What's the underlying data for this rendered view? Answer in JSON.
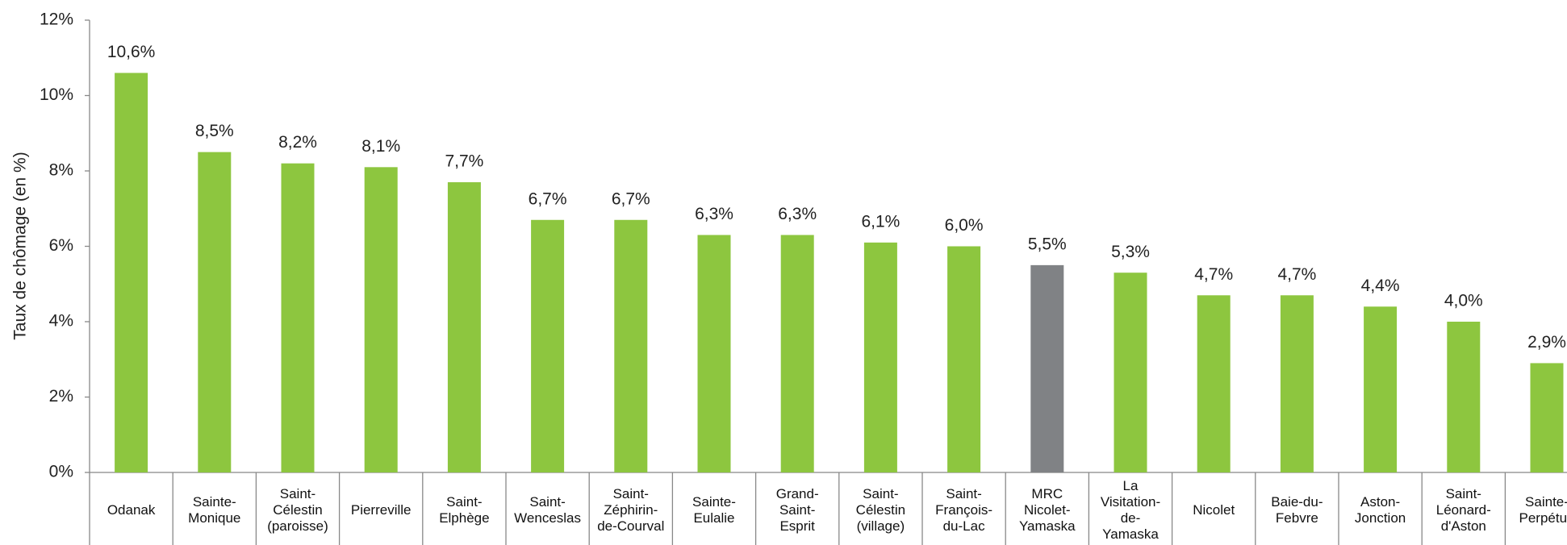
{
  "chart_data": {
    "type": "bar",
    "y_label": "Taux de chômage (en %)",
    "categories": [
      "Odanak",
      "Sainte-\nMonique",
      "Saint-\nCélestin\n(paroisse)",
      "Pierreville",
      "Saint-\nElphège",
      "Saint-\nWenceslas",
      "Saint-\nZéphirin-\nde-Courval",
      "Sainte-\nEulalie",
      "Grand-\nSaint-\nEsprit",
      "Saint-\nCélestin\n(village)",
      "Saint-\nFrançois-\ndu-Lac",
      "MRC\nNicolet-\nYamaska",
      "La\nVisitation-\nde-\nYamaska",
      "Nicolet",
      "Baie-du-\nFebvre",
      "Aston-\nJonction",
      "Saint-\nLéonard-\nd'Aston",
      "Sainte-\nPerpétue"
    ],
    "values": [
      10.6,
      8.5,
      8.2,
      8.1,
      7.7,
      6.7,
      6.7,
      6.3,
      6.3,
      6.1,
      6.0,
      5.5,
      5.3,
      4.7,
      4.7,
      4.4,
      4.0,
      2.9
    ],
    "value_labels": [
      "10,6%",
      "8,5%",
      "8,2%",
      "8,1%",
      "7,7%",
      "6,7%",
      "6,7%",
      "6,3%",
      "6,3%",
      "6,1%",
      "6,0%",
      "5,5%",
      "5,3%",
      "4,7%",
      "4,7%",
      "4,4%",
      "4,0%",
      "2,9%"
    ],
    "colors": [
      "#8dc63f",
      "#8dc63f",
      "#8dc63f",
      "#8dc63f",
      "#8dc63f",
      "#8dc63f",
      "#8dc63f",
      "#8dc63f",
      "#8dc63f",
      "#8dc63f",
      "#8dc63f",
      "#808285",
      "#8dc63f",
      "#8dc63f",
      "#8dc63f",
      "#8dc63f",
      "#8dc63f",
      "#8dc63f"
    ],
    "ylim": [
      0,
      12
    ],
    "yticks": [
      {
        "value": 0,
        "label": "0%"
      },
      {
        "value": 2,
        "label": "2%"
      },
      {
        "value": 4,
        "label": "4%"
      },
      {
        "value": 6,
        "label": "6%"
      },
      {
        "value": 8,
        "label": "8%"
      },
      {
        "value": 10,
        "label": "10%"
      },
      {
        "value": 12,
        "label": "12%"
      }
    ],
    "grid": false
  }
}
